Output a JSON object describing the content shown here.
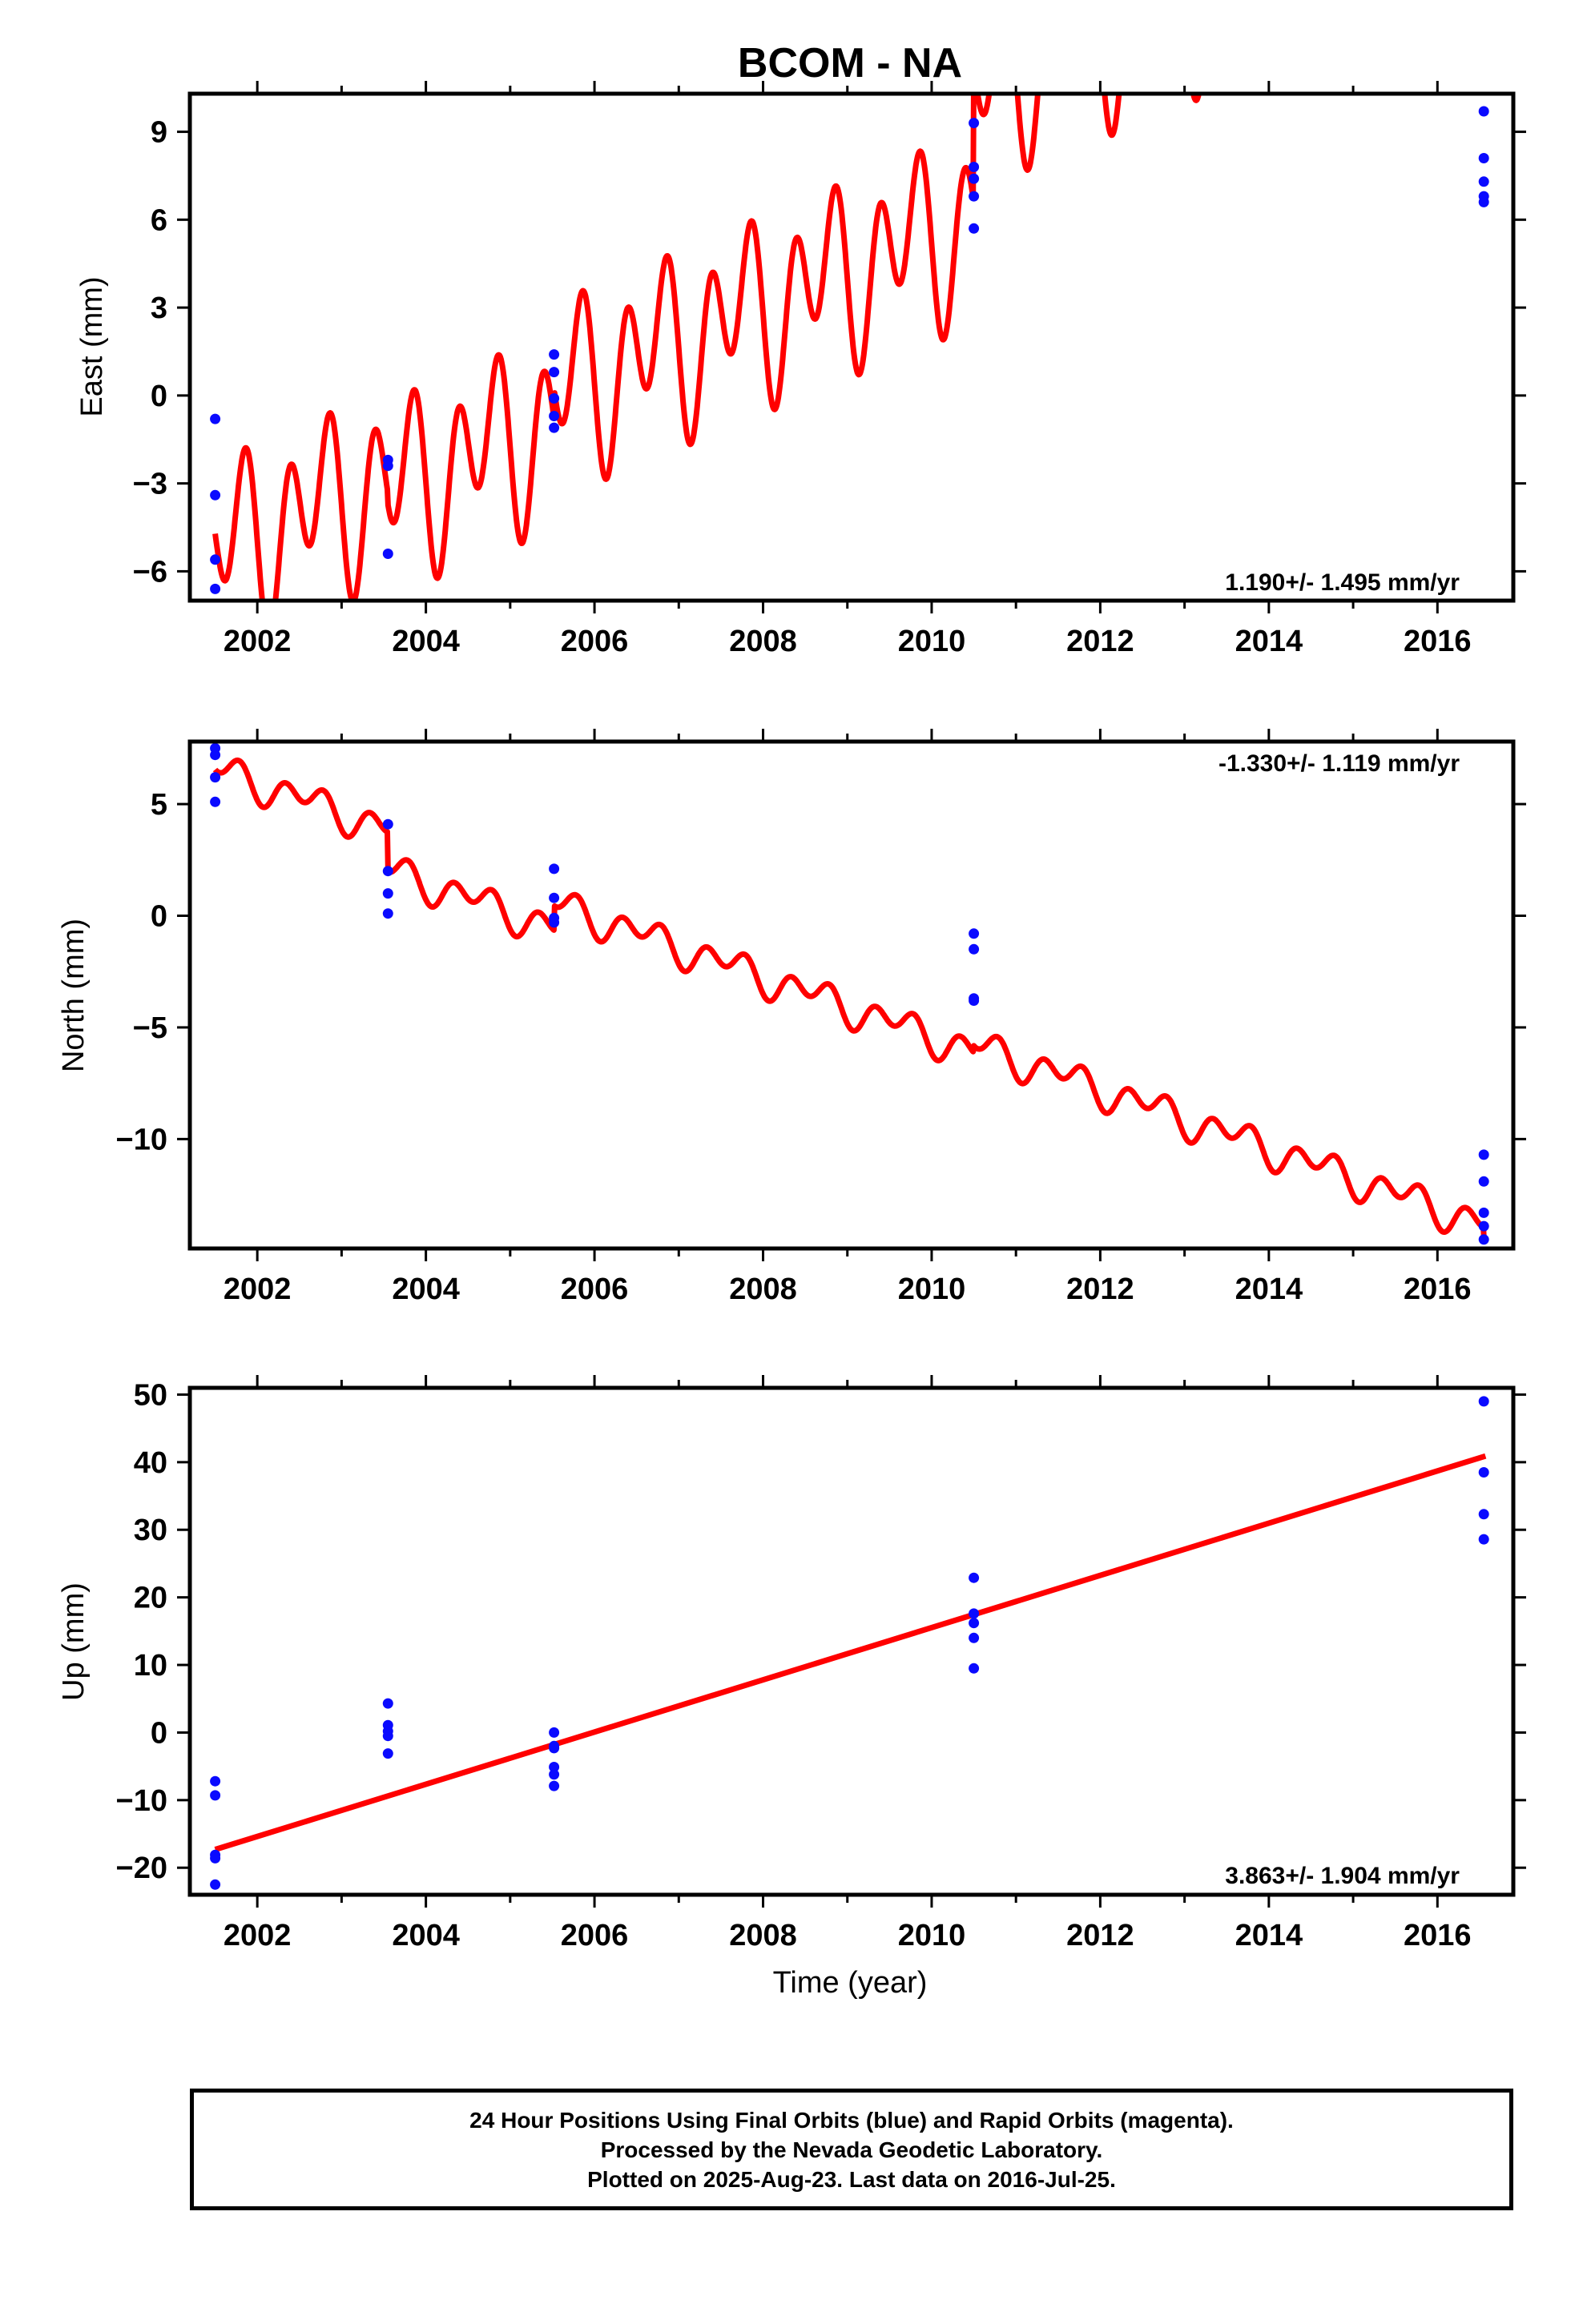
{
  "chart_data": {
    "title": "BCOM - NA",
    "xlabel": "Time (year)",
    "x_ticks": [
      "2002",
      "2004",
      "2006",
      "2008",
      "2010",
      "2012",
      "2014",
      "2016"
    ],
    "panels": [
      {
        "name": "east",
        "type": "scatter+line",
        "ylabel": "East (mm)",
        "ylim": [
          -7,
          10.3
        ],
        "y_ticks": [
          "9",
          "6",
          "3",
          "0",
          "−3",
          "−6"
        ],
        "rate_label": "1.190+/- 1.495 mm/yr",
        "rate_label_pos": "bottom-right",
        "observations": {
          "x": [
            2001.5,
            2001.5,
            2001.5,
            2001.5,
            2003.55,
            2003.55,
            2003.55,
            2005.52,
            2005.52,
            2005.52,
            2005.52,
            2005.52,
            2010.5,
            2010.5,
            2010.5,
            2010.5,
            2010.5,
            2016.55,
            2016.55,
            2016.55,
            2016.55,
            2016.55
          ],
          "y": [
            -0.8,
            -3.4,
            -5.6,
            -6.6,
            -2.2,
            -2.4,
            -5.4,
            1.4,
            0.8,
            -0.1,
            -0.7,
            -1.1,
            9.3,
            7.8,
            7.4,
            6.8,
            5.7,
            9.7,
            8.1,
            7.3,
            6.8,
            6.6
          ]
        },
        "model": {
          "type": "linear+seasonal",
          "x_range": [
            2001.5,
            2016.57
          ],
          "offsets": [
            2001.5,
            2003.55,
            2005.52,
            2010.5,
            2016.55
          ]
        }
      },
      {
        "name": "north",
        "type": "scatter+line",
        "ylabel": "North (mm)",
        "ylim": [
          -14.9,
          7.8
        ],
        "y_ticks": [
          "5",
          "0",
          "−5",
          "−10"
        ],
        "rate_label": "-1.330+/- 1.119 mm/yr",
        "rate_label_pos": "top-right",
        "observations": {
          "x": [
            2001.5,
            2001.5,
            2001.5,
            2001.5,
            2003.55,
            2003.55,
            2003.55,
            2003.55,
            2005.52,
            2005.52,
            2005.52,
            2005.52,
            2010.5,
            2010.5,
            2010.5,
            2010.5,
            2016.55,
            2016.55,
            2016.55,
            2016.55,
            2016.55
          ],
          "y": [
            7.5,
            7.2,
            6.2,
            5.1,
            4.1,
            2.0,
            1.0,
            0.1,
            2.1,
            0.8,
            -0.1,
            -0.3,
            -0.8,
            -1.5,
            -3.7,
            -3.8,
            -10.7,
            -11.9,
            -13.3,
            -13.9,
            -14.5
          ]
        },
        "model": {
          "type": "linear+seasonal",
          "x_range": [
            2001.5,
            2016.57
          ],
          "offsets": [
            2001.5,
            2003.55,
            2005.52,
            2010.5,
            2016.55
          ]
        }
      },
      {
        "name": "up",
        "type": "scatter+line",
        "ylabel": "Up (mm)",
        "ylim": [
          -24,
          51
        ],
        "y_ticks": [
          "50",
          "40",
          "30",
          "20",
          "10",
          "0",
          "−10",
          "−20"
        ],
        "rate_label": "3.863+/- 1.904 mm/yr",
        "rate_label_pos": "bottom-right",
        "observations": {
          "x": [
            2001.5,
            2001.5,
            2001.5,
            2001.5,
            2001.5,
            2003.55,
            2003.55,
            2003.55,
            2003.55,
            2003.55,
            2005.52,
            2005.52,
            2005.52,
            2005.52,
            2005.52,
            2005.52,
            2010.5,
            2010.5,
            2010.5,
            2010.5,
            2010.5,
            2016.55,
            2016.55,
            2016.55,
            2016.55
          ],
          "y": [
            -7.2,
            -9.3,
            -18.1,
            -18.6,
            -22.5,
            4.3,
            1.1,
            -0.5,
            -3.1,
            0.2,
            0.0,
            -2.3,
            -5.1,
            -6.2,
            -7.9,
            -2.0,
            22.9,
            17.6,
            16.2,
            14.0,
            9.5,
            49.0,
            38.5,
            32.3,
            28.6
          ]
        },
        "model": {
          "type": "linear",
          "x_range": [
            2001.5,
            2016.57
          ],
          "y_range": [
            -17.3,
            40.9
          ]
        }
      }
    ],
    "colors": {
      "observations": "#0a0aff",
      "model": "#ff0000",
      "axes": "#000000"
    }
  },
  "footer": {
    "line1": "24 Hour Positions Using Final Orbits (blue) and Rapid Orbits (magenta).",
    "line2": "Processed by the Nevada Geodetic Laboratory.",
    "line3": "Plotted on 2025-Aug-23. Last data on 2016-Jul-25."
  }
}
